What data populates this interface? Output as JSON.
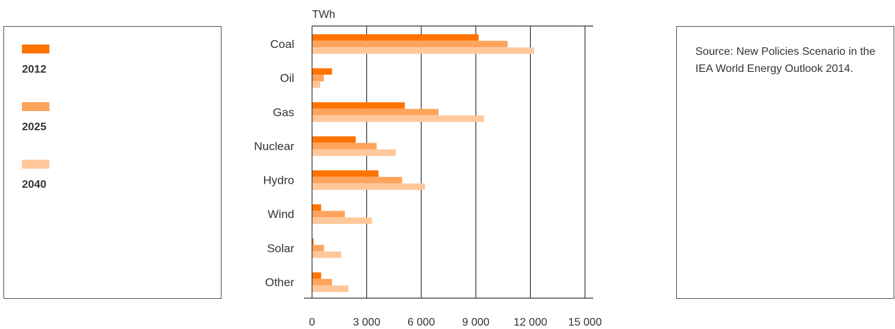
{
  "chart_data": {
    "type": "bar",
    "orientation": "horizontal",
    "unit_label": "TWh",
    "categories": [
      "Coal",
      "Oil",
      "Gas",
      "Nuclear",
      "Hydro",
      "Wind",
      "Solar",
      "Other"
    ],
    "series": [
      {
        "name": "2012",
        "color": "#ff7300",
        "values": [
          9150,
          1100,
          5100,
          2400,
          3650,
          500,
          80,
          500
        ]
      },
      {
        "name": "2025",
        "color": "#ffa45c",
        "values": [
          10750,
          650,
          6950,
          3550,
          4950,
          1800,
          650,
          1100
        ]
      },
      {
        "name": "2040",
        "color": "#ffc79a",
        "values": [
          12200,
          450,
          9450,
          4600,
          6200,
          3300,
          1600,
          2000
        ]
      }
    ],
    "xlim": [
      0,
      15000
    ],
    "xticks": [
      0,
      3000,
      6000,
      9000,
      12000,
      15000
    ],
    "xtick_labels": [
      "0",
      "3 000",
      "6 000",
      "9 000",
      "12 000",
      "15 000"
    ],
    "grid": "vertical",
    "legend_placement": "left"
  },
  "source": {
    "text": "Source: New Policies Scenario in the IEA World Energy Outlook 2014."
  }
}
